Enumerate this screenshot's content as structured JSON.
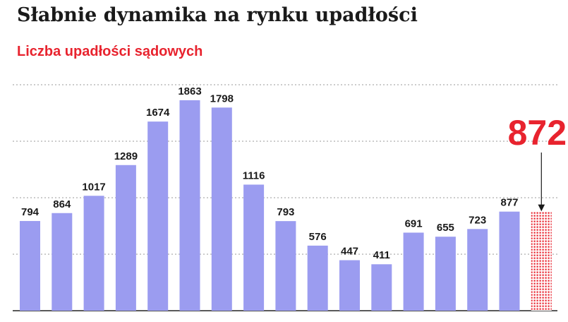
{
  "header": {
    "title": "Słabnie dynamika na rynku upadłości",
    "subtitle": "Liczba upadłości sądowych"
  },
  "colors": {
    "bar": "#9b9cf0",
    "accent": "#e8232e",
    "text": "#1a1a1a"
  },
  "chart_data": {
    "type": "bar",
    "title": "Słabnie dynamika na rynku upadłości",
    "subtitle": "Liczba upadłości sądowych",
    "categories": [
      "",
      "",
      "",
      "",
      "",
      "",
      "",
      "",
      "",
      "",
      "",
      "",
      "",
      "",
      "",
      ""
    ],
    "values": [
      794,
      864,
      1017,
      1289,
      1674,
      1863,
      1798,
      1116,
      793,
      576,
      447,
      411,
      691,
      655,
      723,
      877
    ],
    "highlight": {
      "value": 872,
      "label": "872",
      "style": "hatched"
    },
    "ylim": [
      0,
      2000
    ],
    "grid": true,
    "legend": "none"
  }
}
